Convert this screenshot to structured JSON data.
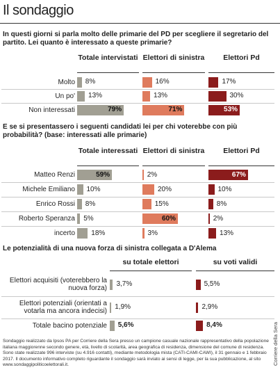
{
  "title": "Il sondaggio",
  "chart_data": [
    {
      "type": "bar",
      "title": "In questi giorni si parla molto delle primarie del PD per scegliere il segretario del partito. Lei quanto è interessato a queste primarie?",
      "categories": [
        "Molto",
        "Un po'",
        "Non interessati"
      ],
      "series": [
        {
          "name": "Totale intervistati",
          "color": "#a19f93",
          "values": [
            8,
            13,
            79
          ],
          "value_labels": [
            "8%",
            "13%",
            "79%"
          ]
        },
        {
          "name": "Elettori di sinistra",
          "color": "#df7b5d",
          "values": [
            16,
            13,
            71
          ],
          "value_labels": [
            "16%",
            "13%",
            "71%"
          ]
        },
        {
          "name": "Elettori Pd",
          "color": "#8b1c1c",
          "values": [
            17,
            30,
            53
          ],
          "value_labels": [
            "17%",
            "30%",
            "53%"
          ]
        }
      ]
    },
    {
      "type": "bar",
      "title": "E se si presentassero i seguenti candidati lei per chi voterebbe con più probabilità? (base: interessati alle primarie)",
      "categories": [
        "Matteo Renzi",
        "Michele Emiliano",
        "Enrico Rossi",
        "Roberto Speranza",
        "incerto"
      ],
      "series": [
        {
          "name": "Totale interessati",
          "color": "#a19f93",
          "values": [
            59,
            10,
            8,
            5,
            18
          ],
          "value_labels": [
            "59%",
            "10%",
            "8%",
            "5%",
            "18%"
          ]
        },
        {
          "name": "Elettori di sinistra",
          "color": "#df7b5d",
          "values": [
            2,
            20,
            15,
            60,
            3
          ],
          "value_labels": [
            "2%",
            "20%",
            "15%",
            "60%",
            "3%"
          ]
        },
        {
          "name": "Elettori Pd",
          "color": "#8b1c1c",
          "values": [
            67,
            10,
            8,
            2,
            13
          ],
          "value_labels": [
            "67%",
            "10%",
            "8%",
            "2%",
            "13%"
          ]
        }
      ]
    },
    {
      "type": "bar",
      "title": "Le potenzialità di una nuova forza di sinistra collegata a D'Alema",
      "categories": [
        "Elettori acquisiti (voterebbero la nuova forza)",
        "Elettori potenziali (orientati a votarla ma ancora indecisi)",
        "Totale bacino potenziale"
      ],
      "series": [
        {
          "name": "su totale elettori",
          "color": "#a19f93",
          "values": [
            3.7,
            1.9,
            5.6
          ],
          "value_labels": [
            "3,7%",
            "1,9%",
            "5,6%"
          ]
        },
        {
          "name": "su voti validi",
          "color": "#8b1c1c",
          "values": [
            5.5,
            2.9,
            8.4
          ],
          "value_labels": [
            "5,5%",
            "2,9%",
            "8,4%"
          ]
        }
      ]
    }
  ],
  "footnote": "Sondaggio realizzato da Ipsos PA per Corriere della Sera presso un campione casuale nazionale rappresentativo della popolazione italiana maggiorenne secondo genere, età, livello di scolarità, area geografica di residenza, dimensione del comune di residenza. Sono state realizzate 996 interviste (su 4.916 contatti), mediante metodologia mista (CATI-CAMI-CAWI), il 31 gennaio e 1 febbraio 2017. Il documento informativo completo riguardante il sondaggio sarà inviato ai sensi di legge, per la sua pubblicazione, al sito www.sondaggipoliticoelettorali.it.",
  "source": "Corriere della Sera"
}
